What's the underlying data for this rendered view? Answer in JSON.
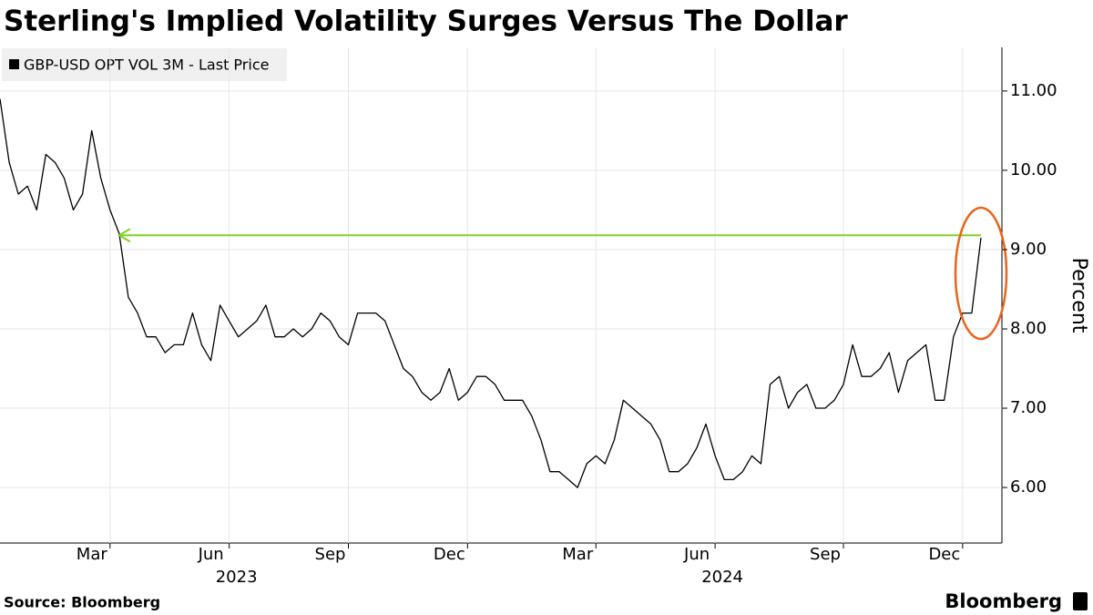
{
  "chart_data": {
    "type": "line",
    "title": "Sterling's Implied Volatility Surges Versus The Dollar",
    "y_axis_label": "Percent",
    "source": "Source: Bloomberg",
    "brand": "Bloomberg",
    "categories": [
      null,
      null,
      null,
      null,
      null,
      null,
      null,
      null,
      null,
      null,
      null,
      null,
      "Mar",
      null,
      null,
      null,
      null,
      null,
      null,
      null,
      null,
      null,
      null,
      null,
      null,
      "Jun",
      null,
      null,
      null,
      null,
      null,
      null,
      null,
      null,
      null,
      null,
      null,
      null,
      "Sep",
      null,
      null,
      null,
      null,
      null,
      null,
      null,
      null,
      null,
      null,
      null,
      null,
      "Dec",
      null,
      null,
      null,
      null,
      null,
      null,
      null,
      null,
      null,
      null,
      null,
      null,
      null,
      "Mar",
      null,
      null,
      null,
      null,
      null,
      null,
      null,
      null,
      null,
      null,
      null,
      null,
      "Jun",
      null,
      null,
      null,
      null,
      null,
      null,
      null,
      null,
      null,
      null,
      null,
      null,
      null,
      "Sep",
      null,
      null,
      null,
      null,
      null,
      null,
      null,
      null,
      null,
      null,
      null,
      null,
      "Dec",
      null,
      null
    ],
    "x_group_labels": [
      "2023",
      "2024"
    ],
    "series": [
      {
        "name": "GBP-USD OPT VOL 3M - Last Price",
        "color": "#000000",
        "values": [
          10.9,
          10.1,
          9.7,
          9.8,
          9.5,
          10.2,
          10.1,
          9.9,
          9.5,
          9.7,
          10.5,
          9.9,
          9.5,
          9.2,
          8.4,
          8.2,
          7.9,
          7.9,
          7.7,
          7.8,
          7.8,
          8.2,
          7.8,
          7.6,
          8.3,
          8.1,
          7.9,
          8.0,
          8.1,
          8.3,
          7.9,
          7.9,
          8.0,
          7.9,
          8.0,
          8.2,
          8.1,
          7.9,
          7.8,
          8.2,
          8.2,
          8.2,
          8.1,
          7.8,
          7.5,
          7.4,
          7.2,
          7.1,
          7.2,
          7.5,
          7.1,
          7.2,
          7.4,
          7.4,
          7.3,
          7.1,
          7.1,
          7.1,
          6.9,
          6.6,
          6.2,
          6.2,
          6.1,
          6.0,
          6.3,
          6.4,
          6.3,
          6.6,
          7.1,
          7.0,
          6.9,
          6.8,
          6.6,
          6.2,
          6.2,
          6.3,
          6.5,
          6.8,
          6.4,
          6.1,
          6.1,
          6.2,
          6.4,
          6.3,
          7.3,
          7.4,
          7.0,
          7.2,
          7.3,
          7.0,
          7.0,
          7.1,
          7.3,
          7.8,
          7.4,
          7.4,
          7.5,
          7.7,
          7.2,
          7.6,
          7.7,
          7.8,
          7.1,
          7.1,
          7.9,
          8.2,
          8.2,
          9.15
        ]
      }
    ],
    "reference_line": {
      "value": 9.18,
      "color": "#7ed321"
    },
    "ylim": [
      5.3,
      11.55
    ],
    "yticks": [
      {
        "value": 6,
        "label": "6.00"
      },
      {
        "value": 7,
        "label": "7.00"
      },
      {
        "value": 8,
        "label": "8.00"
      },
      {
        "value": 9,
        "label": "9.00"
      },
      {
        "value": 10,
        "label": "10.00"
      },
      {
        "value": 11,
        "label": "11.00"
      }
    ],
    "grid": true
  }
}
